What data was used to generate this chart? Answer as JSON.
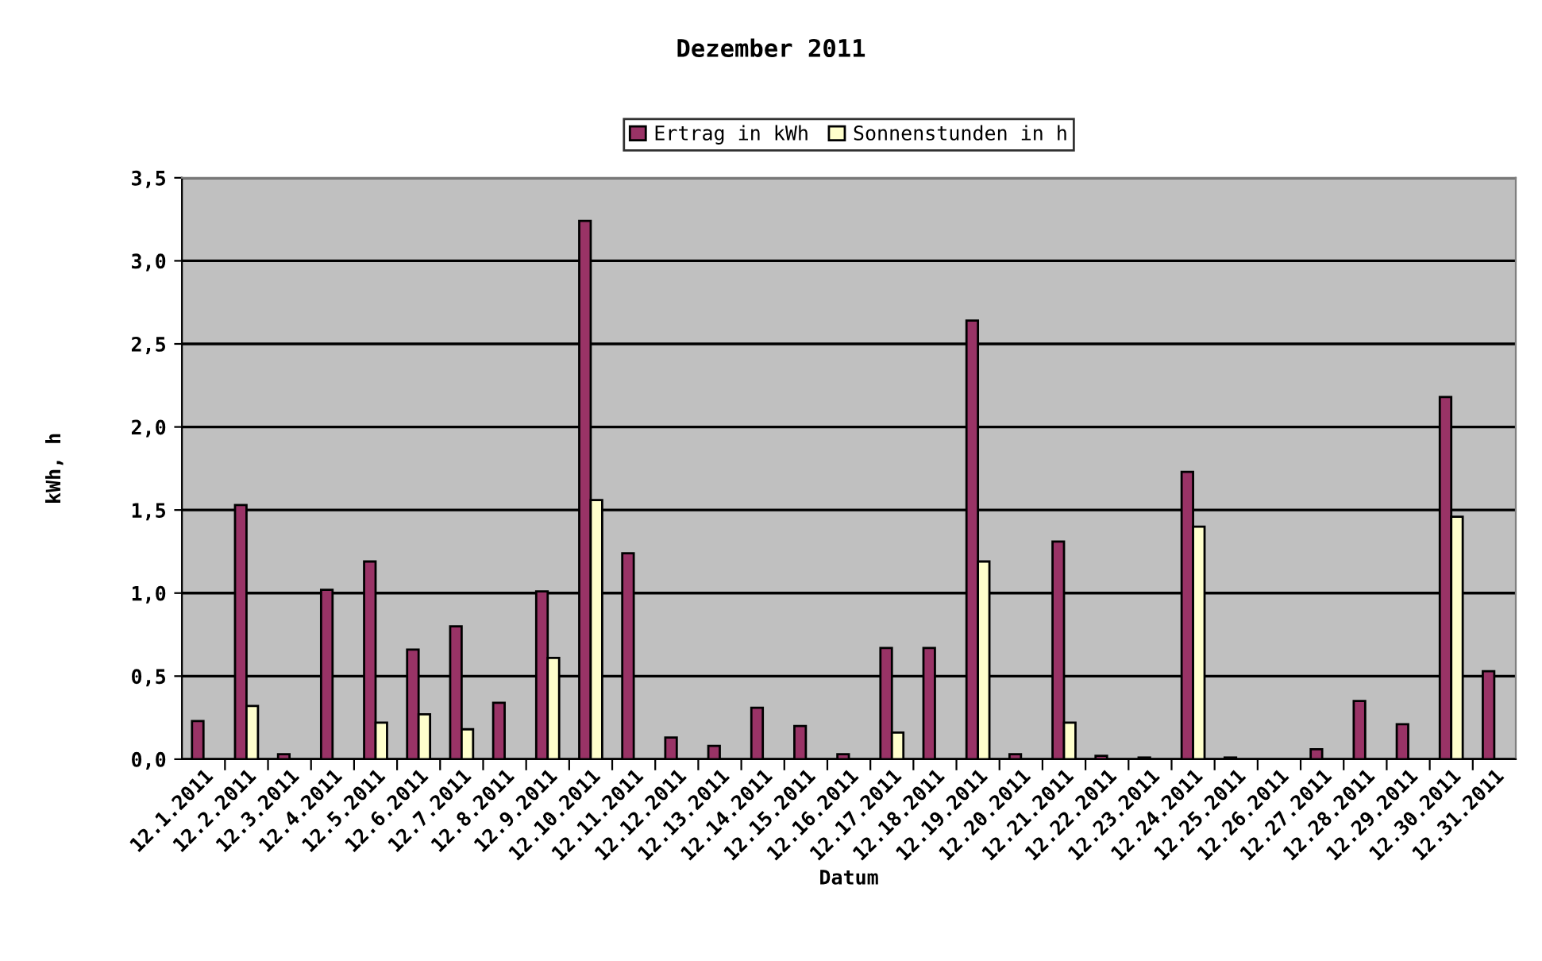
{
  "chart_data": {
    "type": "bar",
    "title": "Dezember 2011",
    "xlabel": "Datum",
    "ylabel": "kWh, h",
    "categories": [
      "12.1.2011",
      "12.2.2011",
      "12.3.2011",
      "12.4.2011",
      "12.5.2011",
      "12.6.2011",
      "12.7.2011",
      "12.8.2011",
      "12.9.2011",
      "12.10.2011",
      "12.11.2011",
      "12.12.2011",
      "12.13.2011",
      "12.14.2011",
      "12.15.2011",
      "12.16.2011",
      "12.17.2011",
      "12.18.2011",
      "12.19.2011",
      "12.20.2011",
      "12.21.2011",
      "12.22.2011",
      "12.23.2011",
      "12.24.2011",
      "12.25.2011",
      "12.26.2011",
      "12.27.2011",
      "12.28.2011",
      "12.29.2011",
      "12.30.2011",
      "12.31.2011"
    ],
    "series": [
      {
        "name": "Ertrag in kWh",
        "color": "#993366",
        "values": [
          0.23,
          1.53,
          0.03,
          1.02,
          1.19,
          0.66,
          0.8,
          0.34,
          1.01,
          3.24,
          1.24,
          0.13,
          0.08,
          0.31,
          0.2,
          0.03,
          0.67,
          0.67,
          2.64,
          0.03,
          1.31,
          0.02,
          0.01,
          1.73,
          0.01,
          null,
          0.06,
          0.35,
          0.21,
          2.18,
          0.53
        ]
      },
      {
        "name": "Sonnenstunden in h",
        "color": "#ffffcc",
        "values": [
          null,
          0.32,
          null,
          null,
          0.22,
          0.27,
          0.18,
          null,
          0.61,
          1.56,
          null,
          null,
          null,
          null,
          null,
          null,
          0.16,
          null,
          1.19,
          null,
          0.22,
          null,
          null,
          1.4,
          null,
          null,
          null,
          null,
          null,
          1.46,
          null
        ]
      }
    ],
    "ylim": [
      0,
      3.5
    ],
    "yticks": [
      {
        "value": 0,
        "label": "0,0"
      },
      {
        "value": 0.5,
        "label": "0,5"
      },
      {
        "value": 1,
        "label": "1,0"
      },
      {
        "value": 1.5,
        "label": "1,5"
      },
      {
        "value": 2,
        "label": "2,0"
      },
      {
        "value": 2.5,
        "label": "2,5"
      },
      {
        "value": 3,
        "label": "3,0"
      },
      {
        "value": 3.5,
        "label": "3,5"
      }
    ],
    "grid": "y",
    "legend": "top"
  }
}
